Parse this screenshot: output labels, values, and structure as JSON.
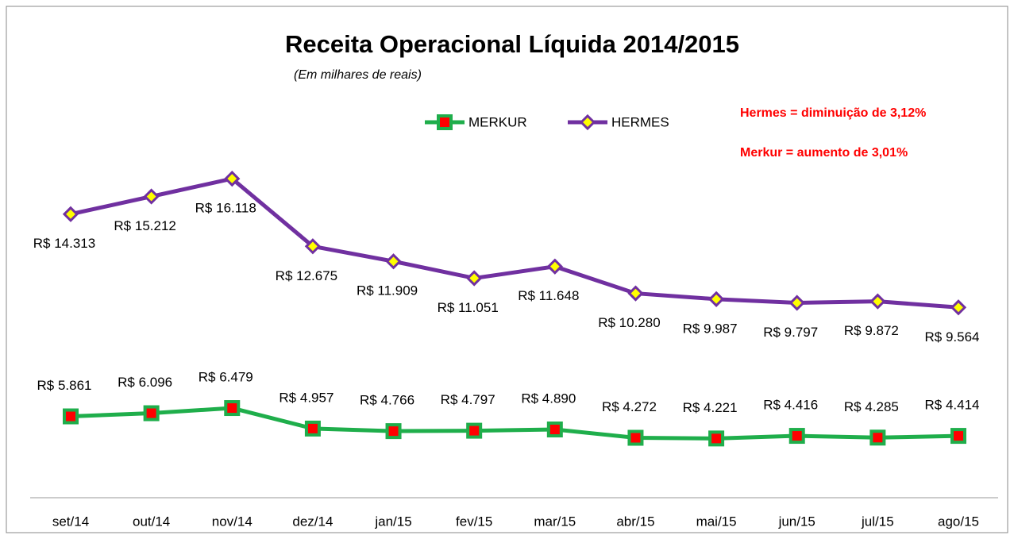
{
  "chart_data": {
    "type": "line",
    "title": "Receita Operacional Líquida 2014/2015",
    "subtitle": "(Em milhares de reais)",
    "annotations": [
      "Hermes = diminuição de  3,12%",
      "Merkur =   aumento de 3,01%"
    ],
    "categories": [
      "set/14",
      "out/14",
      "nov/14",
      "dez/14",
      "jan/15",
      "fev/15",
      "mar/15",
      "abr/15",
      "mai/15",
      "jun/15",
      "jul/15",
      "ago/15"
    ],
    "series": [
      {
        "name": "MERKUR",
        "color": "#1fae4b",
        "marker_color": "#ff0000",
        "values": [
          5861,
          6096,
          6479,
          4957,
          4766,
          4797,
          4890,
          4272,
          4221,
          4416,
          4285,
          4414
        ],
        "value_labels": [
          "R$ 5.861",
          "R$ 6.096",
          "R$ 6.479",
          "R$ 4.957",
          "R$ 4.766",
          "R$ 4.797",
          "R$ 4.890",
          "R$ 4.272",
          "R$ 4.221",
          "R$ 4.416",
          "R$ 4.285",
          "R$ 4.414"
        ]
      },
      {
        "name": "HERMES",
        "color": "#7030a0",
        "marker_color": "#ffff00",
        "axis": "y2",
        "values": [
          14313,
          15212,
          16118,
          12675,
          11909,
          11051,
          11648,
          10280,
          9987,
          9797,
          9872,
          9564
        ],
        "value_labels": [
          "R$ 14.313",
          "R$ 15.212",
          "R$ 16.118",
          "R$ 12.675",
          "R$ 11.909",
          "R$ 11.051",
          "R$ 11.648",
          "R$ 10.280",
          "R$ 9.987",
          "R$ 9.797",
          "R$ 9.872",
          "R$ 9.564"
        ]
      }
    ],
    "ylim": [
      0,
      35000
    ],
    "y2lim": [
      0,
      24000
    ]
  }
}
